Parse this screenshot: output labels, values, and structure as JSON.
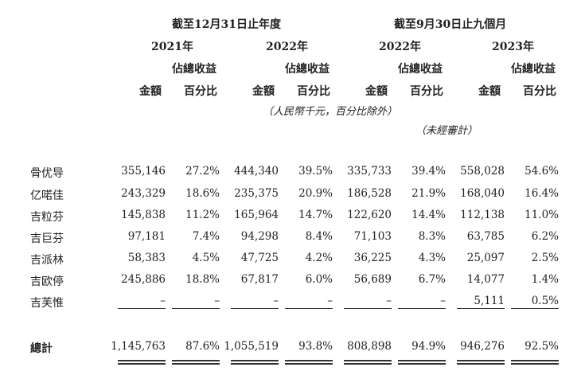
{
  "header": {
    "group_year": "截至12月31日止年度",
    "group_nine": "截至9月30日止九個月",
    "years": [
      "2021年",
      "2022年",
      "2022年",
      "2023年"
    ],
    "pct_label": "佔總收益",
    "amount_label": "金額",
    "percent_label": "百分比"
  },
  "notes": {
    "unit": "（人民幣千元，百分比除外）",
    "unaudited": "（未經審計）"
  },
  "rows": [
    {
      "name": "骨优导",
      "values": [
        "355,146",
        "27.2%",
        "444,340",
        "39.5%",
        "335,733",
        "39.4%",
        "558,028",
        "54.6%"
      ]
    },
    {
      "name": "亿喏佳",
      "values": [
        "243,329",
        "18.6%",
        "235,375",
        "20.9%",
        "186,528",
        "21.9%",
        "168,040",
        "16.4%"
      ]
    },
    {
      "name": "吉粒芬",
      "values": [
        "145,838",
        "11.2%",
        "165,964",
        "14.7%",
        "122,620",
        "14.4%",
        "112,138",
        "11.0%"
      ]
    },
    {
      "name": "吉巨芬",
      "values": [
        "97,181",
        "7.4%",
        "94,298",
        "8.4%",
        "71,103",
        "8.3%",
        "63,785",
        "6.2%"
      ]
    },
    {
      "name": "吉派林",
      "values": [
        "58,383",
        "4.5%",
        "47,725",
        "4.2%",
        "36,225",
        "4.3%",
        "25,097",
        "2.5%"
      ]
    },
    {
      "name": "吉欧停",
      "values": [
        "245,886",
        "18.8%",
        "67,817",
        "6.0%",
        "56,689",
        "6.7%",
        "14,077",
        "1.4%"
      ]
    },
    {
      "name": "吉芙惟",
      "values": [
        "–",
        "–",
        "–",
        "–",
        "–",
        "–",
        "5,111",
        "0.5%"
      ]
    }
  ],
  "total": {
    "name": "總計",
    "values": [
      "1,145,763",
      "87.6%",
      "1,055,519",
      "93.8%",
      "808,898",
      "94.9%",
      "946,276",
      "92.5%"
    ]
  }
}
